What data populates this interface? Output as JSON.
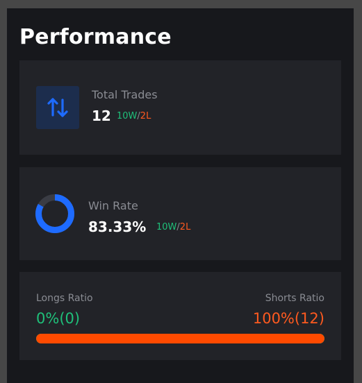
{
  "title": "Performance",
  "colors": {
    "win": "#1fc07a",
    "loss": "#ff5a1f",
    "accent": "#1e6bff",
    "short_bar": "#ff4a00"
  },
  "total_trades": {
    "icon": "arrows-up-down-icon",
    "label": "Total Trades",
    "value": "12",
    "wins": "10W",
    "separator": "/",
    "losses": "2L"
  },
  "win_rate": {
    "label": "Win Rate",
    "value": "83.33%",
    "fraction": 0.8333,
    "wins": "10W",
    "separator": "/",
    "losses": "2L"
  },
  "ratio": {
    "longs_label": "Longs Ratio",
    "longs_value": "0%(0)",
    "shorts_label": "Shorts Ratio",
    "shorts_value": "100%(12)",
    "shorts_fraction": 1.0
  }
}
